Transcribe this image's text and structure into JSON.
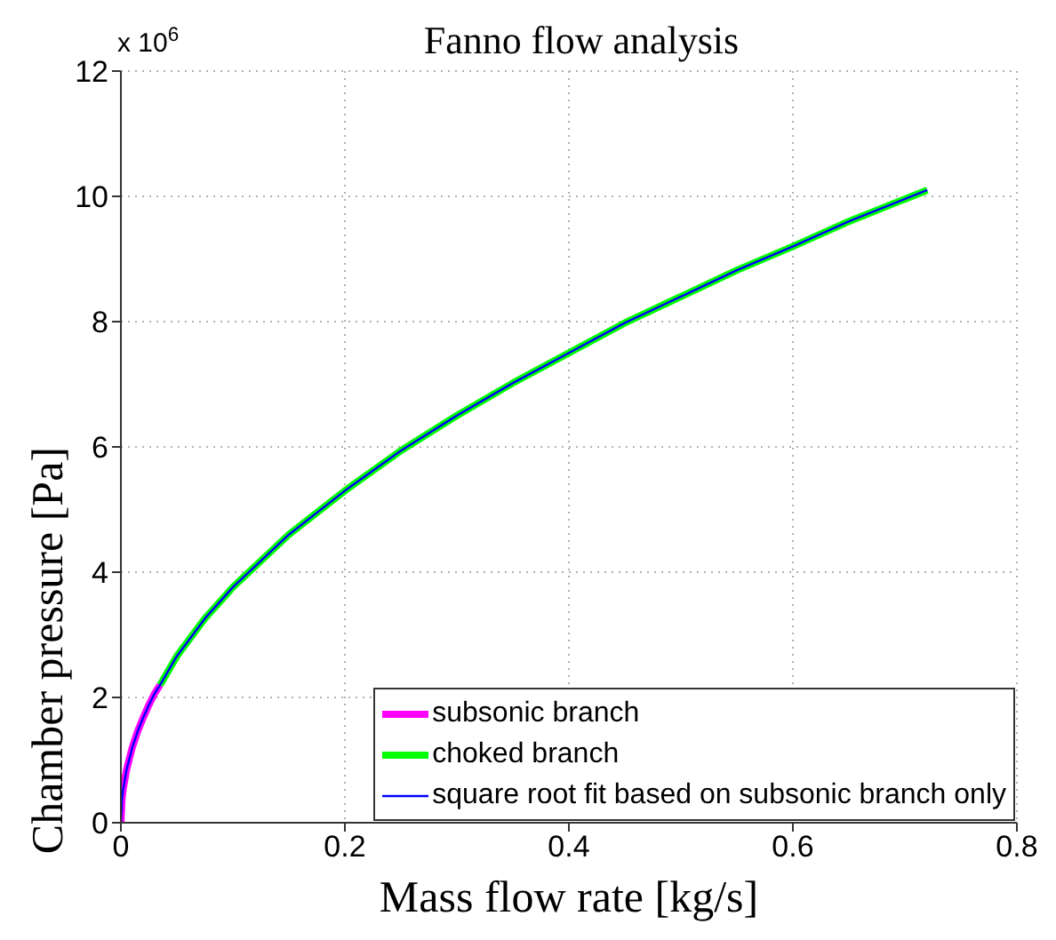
{
  "chart_data": {
    "type": "line",
    "title": "Fanno flow analysis",
    "xlabel": "Mass flow rate [kg/s]",
    "ylabel": "Chamber pressure [Pa]",
    "annotations": [
      "x 10$^{6}$"
    ],
    "series": [
      {
        "name": "subsonic branch",
        "color": "#ff00ff",
        "x": [
          0,
          0.001,
          0.002,
          0.005,
          0.01,
          0.015,
          0.02,
          0.025,
          0.03,
          0.035
        ],
        "values": [
          0,
          0.38,
          0.53,
          0.84,
          1.19,
          1.46,
          1.68,
          1.88,
          2.06,
          2.2
        ]
      },
      {
        "name": "choked branch",
        "color": "#00ff00",
        "x": [
          0.035,
          0.05,
          0.075,
          0.1,
          0.15,
          0.2,
          0.25,
          0.3,
          0.35,
          0.4,
          0.45,
          0.5,
          0.55,
          0.6,
          0.65,
          0.72
        ],
        "values": [
          2.2,
          2.66,
          3.26,
          3.76,
          4.6,
          5.3,
          5.94,
          6.5,
          7.02,
          7.5,
          7.98,
          8.4,
          8.82,
          9.2,
          9.6,
          10.1
        ]
      },
      {
        "name": "square root fit based on subsonic branch only",
        "color": "#0000ff",
        "x": [
          0,
          0.001,
          0.002,
          0.005,
          0.01,
          0.015,
          0.02,
          0.025,
          0.03,
          0.035,
          0.05,
          0.075,
          0.1,
          0.15,
          0.2,
          0.25,
          0.3,
          0.35,
          0.4,
          0.45,
          0.5,
          0.55,
          0.6,
          0.65,
          0.72
        ],
        "values": [
          0,
          0.38,
          0.53,
          0.84,
          1.19,
          1.46,
          1.68,
          1.88,
          2.06,
          2.2,
          2.66,
          3.26,
          3.76,
          4.6,
          5.3,
          5.94,
          6.5,
          7.02,
          7.5,
          7.98,
          8.4,
          8.82,
          9.2,
          9.6,
          10.1
        ]
      }
    ],
    "xlim": [
      0,
      0.8
    ],
    "xticks": [
      0,
      0.2,
      0.4,
      0.6,
      0.8
    ],
    "ylim": [
      0,
      12
    ],
    "yticks": [
      0,
      2,
      4,
      6,
      8,
      10,
      12
    ],
    "grid": true,
    "legend": "bottom right",
    "line_style": "solid",
    "marker": "none"
  }
}
